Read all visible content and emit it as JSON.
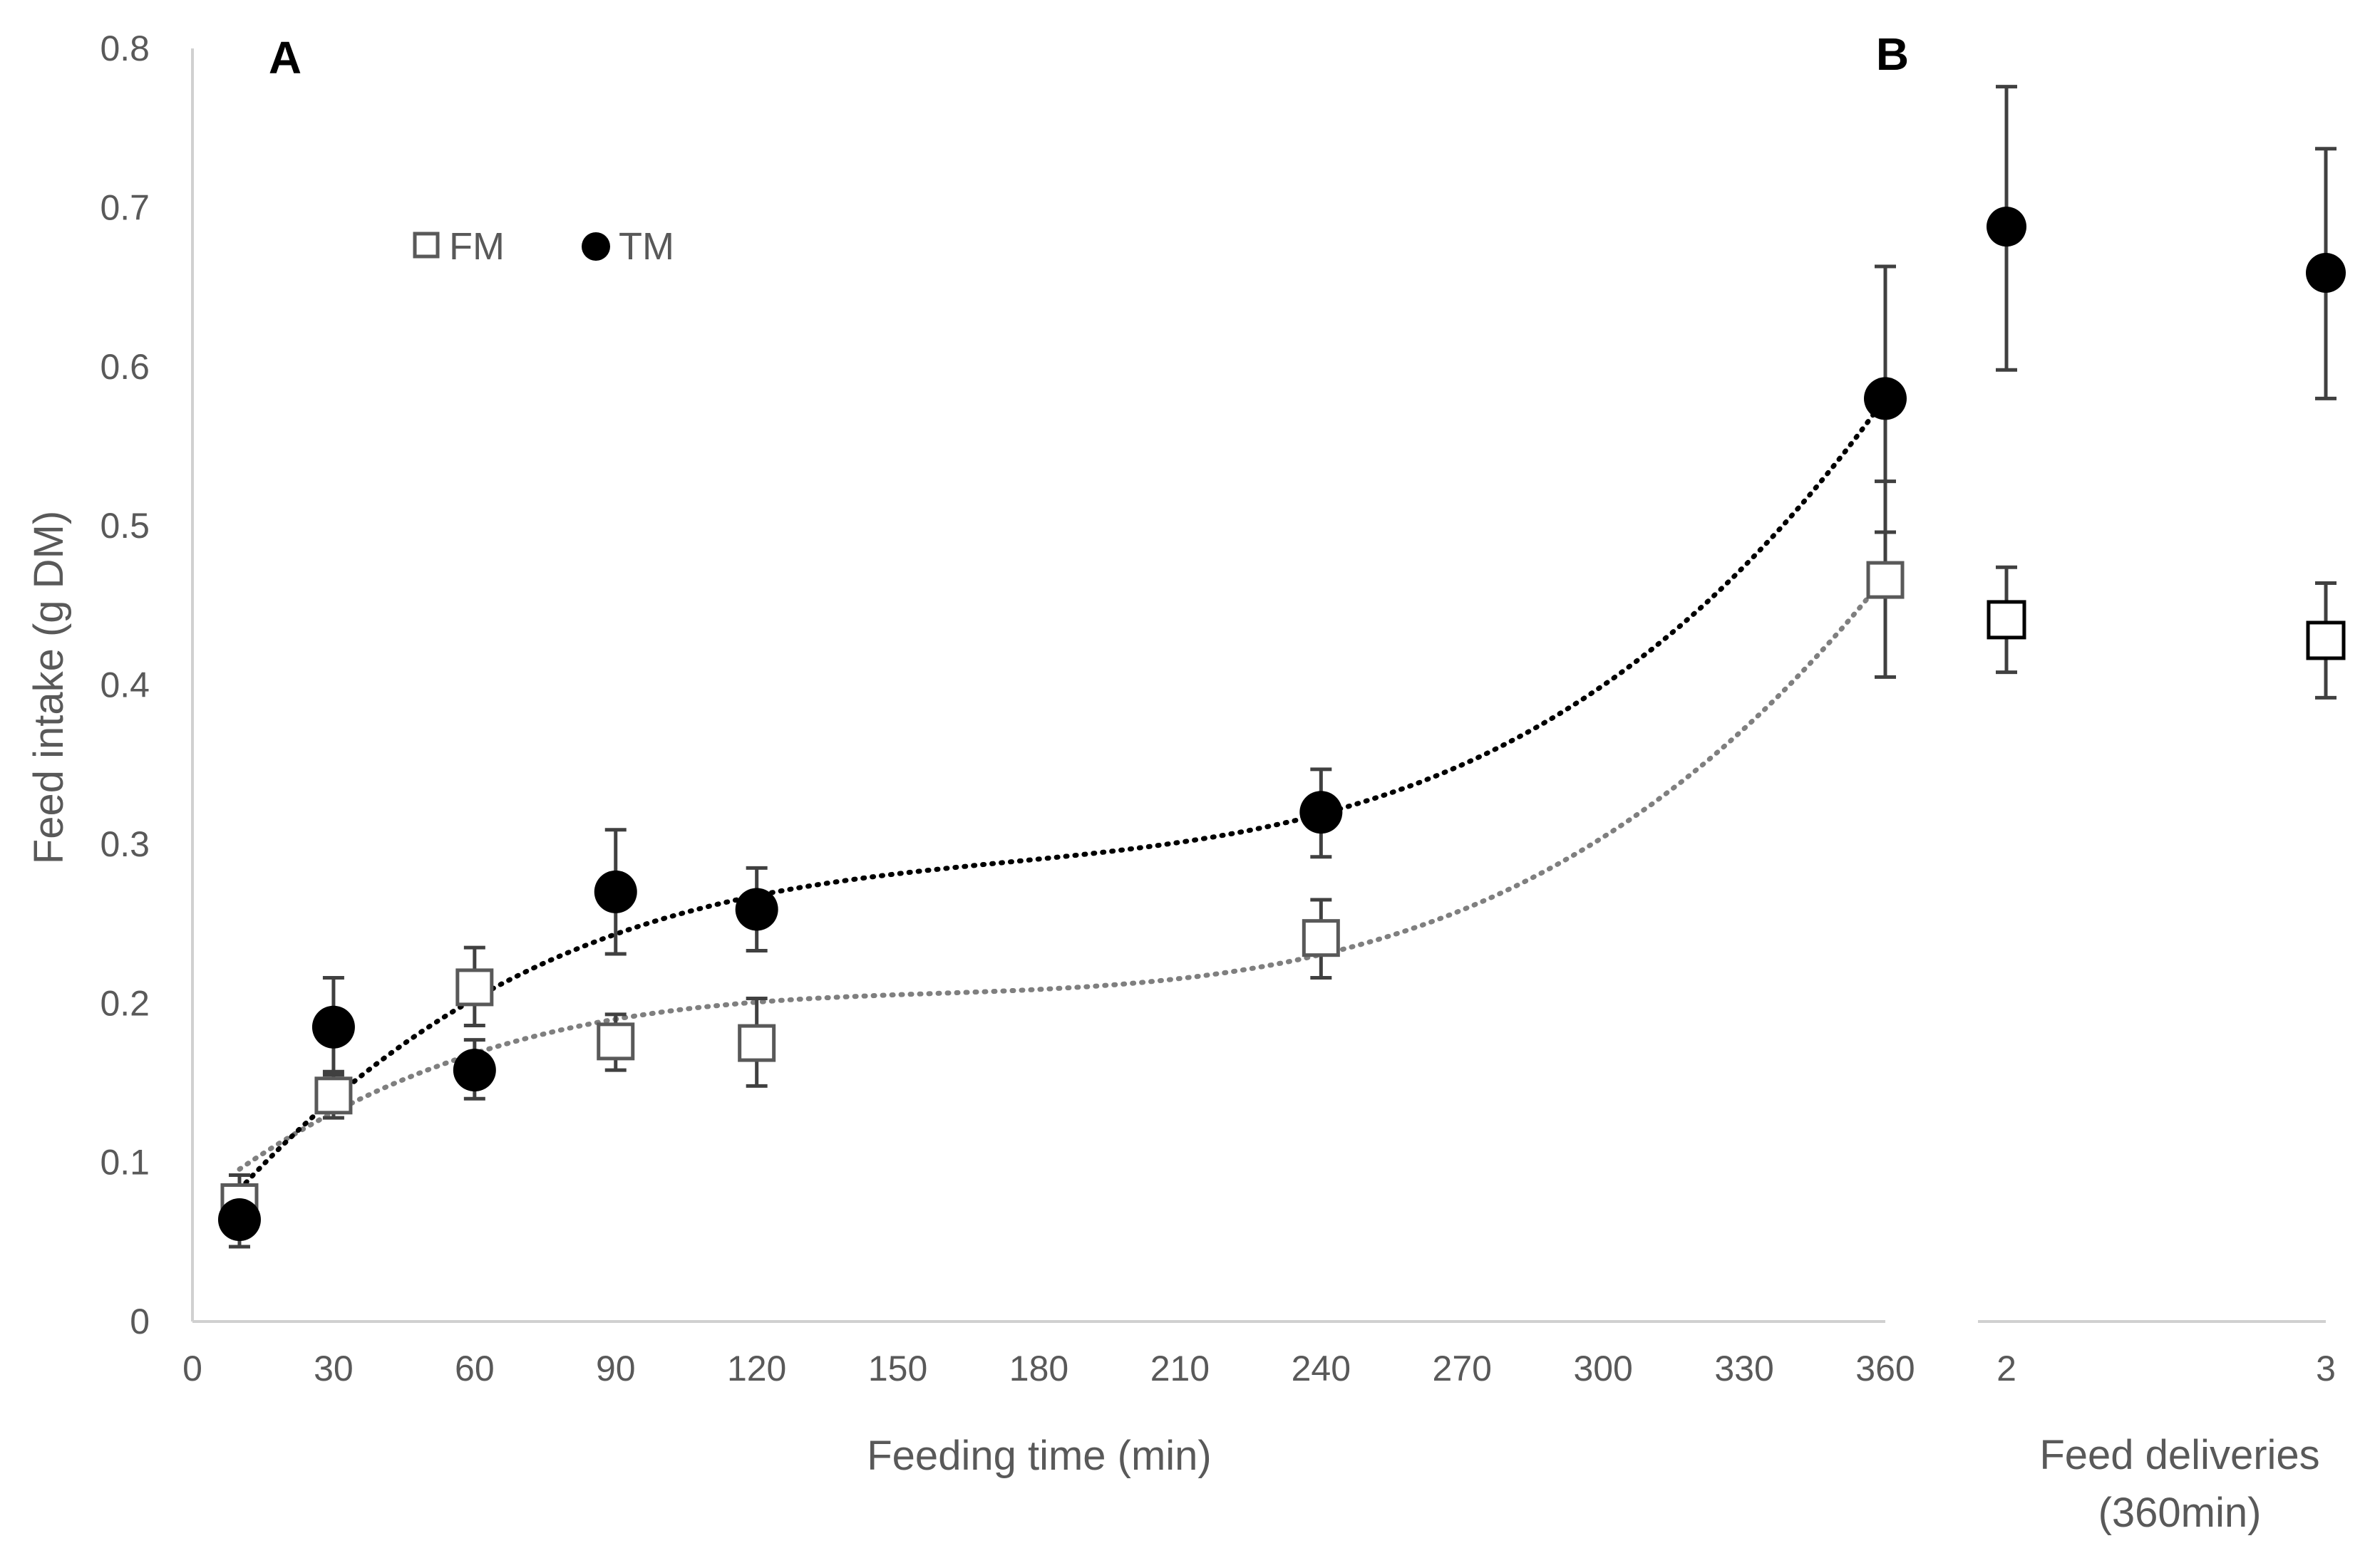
{
  "chart_data": {
    "type": "scatter",
    "panels": [
      {
        "label": "A",
        "xlabel": "Feeding time (min)",
        "ylabel": "Feed intake (g DM)",
        "xlim": [
          0,
          360
        ],
        "ylim": [
          0,
          0.8
        ],
        "xticks": [
          "0",
          "30",
          "60",
          "90",
          "120",
          "150",
          "180",
          "210",
          "240",
          "270",
          "300",
          "330",
          "360"
        ],
        "yticks": [
          "0",
          "0.1",
          "0.2",
          "0.3",
          "0.4",
          "0.5",
          "0.6",
          "0.7",
          "0.8"
        ],
        "series": [
          {
            "name": "FM",
            "marker": "open-square",
            "color": "#595959",
            "trendline": "dotted",
            "trend_color": "#7f7f7f",
            "x": [
              10,
              30,
              60,
              90,
              120,
              240,
              360
            ],
            "y": [
              0.075,
              0.142,
              0.21,
              0.176,
              0.175,
              0.241,
              0.466
            ],
            "err_low": [
              0.062,
              0.128,
              0.186,
              0.158,
              0.148,
              0.216,
              0.405
            ],
            "err_high": [
              0.092,
              0.157,
              0.235,
              0.193,
              0.203,
              0.265,
              0.528
            ]
          },
          {
            "name": "TM",
            "marker": "filled-circle",
            "color": "#000000",
            "trendline": "dotted",
            "trend_color": "#000000",
            "x": [
              10,
              30,
              60,
              90,
              120,
              240,
              360
            ],
            "y": [
              0.064,
              0.185,
              0.158,
              0.27,
              0.259,
              0.32,
              0.58
            ],
            "err_low": [
              0.047,
              0.155,
              0.14,
              0.231,
              0.233,
              0.292,
              0.496
            ],
            "err_high": [
              0.08,
              0.216,
              0.177,
              0.309,
              0.285,
              0.347,
              0.663
            ]
          }
        ]
      },
      {
        "label": "B",
        "xlabel_lines": [
          "Feed deliveries",
          "(360min)"
        ],
        "categories": [
          "2",
          "3"
        ],
        "series": [
          {
            "name": "FM",
            "marker": "open-square",
            "color": "#000000",
            "values": [
              0.441,
              0.428
            ],
            "err_low": [
              0.408,
              0.392
            ],
            "err_high": [
              0.474,
              0.464
            ]
          },
          {
            "name": "TM",
            "marker": "filled-circle",
            "color": "#000000",
            "values": [
              0.688,
              0.659
            ],
            "err_low": [
              0.598,
              0.58
            ],
            "err_high": [
              0.776,
              0.737
            ]
          }
        ]
      }
    ],
    "legend": [
      {
        "name": "FM",
        "marker": "open-square"
      },
      {
        "name": "TM",
        "marker": "filled-circle"
      }
    ],
    "legend_position": "top-left",
    "grid": false
  }
}
